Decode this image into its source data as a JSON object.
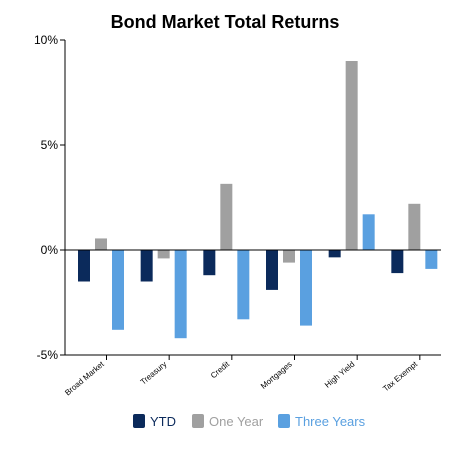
{
  "chart_data": {
    "type": "bar",
    "title": "Bond Market Total Returns",
    "xlabel": "",
    "ylabel": "",
    "categories": [
      "Broad Market",
      "Treasury",
      "Credit",
      "Mortgages",
      "High Yield",
      "Tax Exempt"
    ],
    "series": [
      {
        "name": "YTD",
        "color": "#0b2a5b",
        "values": [
          -1.5,
          -1.5,
          -1.2,
          -1.9,
          -0.35,
          -1.1
        ]
      },
      {
        "name": "One Year",
        "color": "#a0a0a0",
        "values": [
          0.55,
          -0.4,
          3.15,
          -0.6,
          9.0,
          2.2
        ]
      },
      {
        "name": "Three Years",
        "color": "#5aa0e0",
        "values": [
          -3.8,
          -4.2,
          -3.3,
          -3.6,
          1.7,
          -0.9
        ]
      }
    ],
    "ylim": [
      -5,
      10
    ],
    "y_ticks": [
      -5,
      0,
      5,
      10
    ],
    "y_tick_labels": [
      "-5%",
      "0%",
      "5%",
      "10%"
    ],
    "grid": false,
    "legend_position": "bottom",
    "legend_text_colors": [
      "#0b2a5b",
      "#a0a0a0",
      "#5aa0e0"
    ]
  }
}
